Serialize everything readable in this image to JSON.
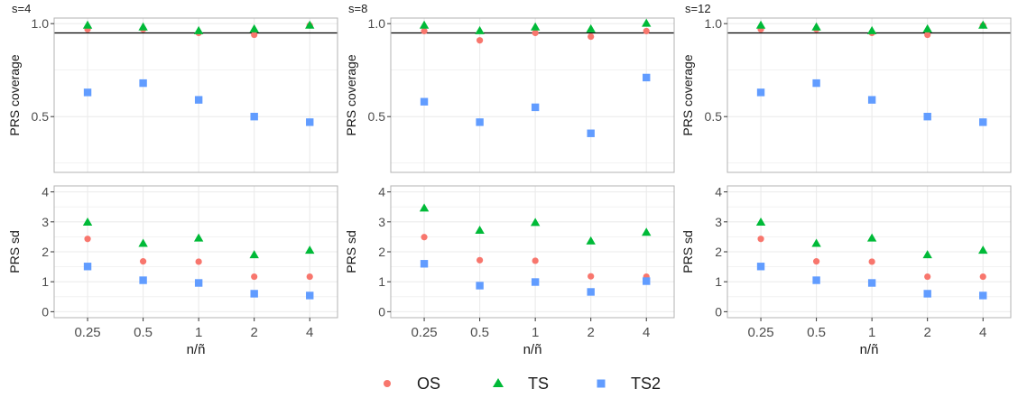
{
  "colors": {
    "OS": "#F8766D",
    "TS": "#00BA38",
    "TS2": "#619CFF",
    "reference_line": "#000000",
    "grid": "#EBEBEB",
    "panel_border": "#B3B3B3"
  },
  "shared_x_categories": [
    "0.25",
    "0.5",
    "1",
    "2",
    "4"
  ],
  "x_axis_label": "n/ñ",
  "legend": {
    "items": [
      {
        "name": "OS",
        "symbol": "circle"
      },
      {
        "name": "TS",
        "symbol": "triangle"
      },
      {
        "name": "TS2",
        "symbol": "square"
      }
    ]
  },
  "chart_data": [
    {
      "type": "scatter",
      "facet": "s=4",
      "ylabel": "PRS coverage",
      "ylim": [
        0.2,
        1.03
      ],
      "yticks": [
        0.5,
        1.0
      ],
      "yticklabels": [
        "0.5",
        "1.0"
      ],
      "reference_line": 0.95,
      "categories": [
        "0.25",
        "0.5",
        "1",
        "2",
        "4"
      ],
      "series": [
        {
          "name": "OS",
          "values": [
            0.97,
            0.97,
            0.95,
            0.94,
            0.99
          ]
        },
        {
          "name": "TS",
          "values": [
            0.99,
            0.98,
            0.96,
            0.97,
            0.99
          ]
        },
        {
          "name": "TS2",
          "values": [
            0.63,
            0.68,
            0.59,
            0.5,
            0.47
          ]
        }
      ]
    },
    {
      "type": "scatter",
      "facet": "s=8",
      "ylabel": "PRS coverage",
      "ylim": [
        0.2,
        1.03
      ],
      "yticks": [
        0.5,
        1.0
      ],
      "yticklabels": [
        "0.5",
        "1.0"
      ],
      "reference_line": 0.95,
      "categories": [
        "0.25",
        "0.5",
        "1",
        "2",
        "4"
      ],
      "series": [
        {
          "name": "OS",
          "values": [
            0.96,
            0.91,
            0.95,
            0.93,
            0.96
          ]
        },
        {
          "name": "TS",
          "values": [
            0.99,
            0.96,
            0.98,
            0.97,
            1.0
          ]
        },
        {
          "name": "TS2",
          "values": [
            0.58,
            0.47,
            0.55,
            0.41,
            0.71
          ]
        }
      ]
    },
    {
      "type": "scatter",
      "facet": "s=12",
      "ylabel": "PRS coverage",
      "ylim": [
        0.2,
        1.03
      ],
      "yticks": [
        0.5,
        1.0
      ],
      "yticklabels": [
        "0.5",
        "1.0"
      ],
      "reference_line": 0.95,
      "categories": [
        "0.25",
        "0.5",
        "1",
        "2",
        "4"
      ],
      "series": [
        {
          "name": "OS",
          "values": [
            0.97,
            0.97,
            0.95,
            0.94,
            0.99
          ]
        },
        {
          "name": "TS",
          "values": [
            0.99,
            0.98,
            0.96,
            0.97,
            0.99
          ]
        },
        {
          "name": "TS2",
          "values": [
            0.63,
            0.68,
            0.59,
            0.5,
            0.47
          ]
        }
      ]
    },
    {
      "type": "scatter",
      "facet": "s=4",
      "ylabel": "PRS sd",
      "xlabel": "n/ñ",
      "ylim": [
        -0.2,
        4.2
      ],
      "yticks": [
        0,
        1,
        2,
        3,
        4
      ],
      "yticklabels": [
        "0",
        "1",
        "2",
        "3",
        "4"
      ],
      "categories": [
        "0.25",
        "0.5",
        "1",
        "2",
        "4"
      ],
      "series": [
        {
          "name": "OS",
          "values": [
            2.43,
            1.68,
            1.67,
            1.17,
            1.17
          ]
        },
        {
          "name": "TS",
          "values": [
            2.98,
            2.27,
            2.45,
            1.89,
            2.04
          ]
        },
        {
          "name": "TS2",
          "values": [
            1.51,
            1.05,
            0.96,
            0.6,
            0.54
          ]
        }
      ]
    },
    {
      "type": "scatter",
      "facet": "s=8",
      "ylabel": "PRS sd",
      "xlabel": "n/ñ",
      "ylim": [
        -0.2,
        4.2
      ],
      "yticks": [
        0,
        1,
        2,
        3,
        4
      ],
      "yticklabels": [
        "0",
        "1",
        "2",
        "3",
        "4"
      ],
      "categories": [
        "0.25",
        "0.5",
        "1",
        "2",
        "4"
      ],
      "series": [
        {
          "name": "OS",
          "values": [
            2.49,
            1.72,
            1.7,
            1.18,
            1.17
          ]
        },
        {
          "name": "TS",
          "values": [
            3.45,
            2.71,
            2.97,
            2.35,
            2.64
          ]
        },
        {
          "name": "TS2",
          "values": [
            1.6,
            0.87,
            0.99,
            0.66,
            1.02
          ]
        }
      ]
    },
    {
      "type": "scatter",
      "facet": "s=12",
      "ylabel": "PRS sd",
      "xlabel": "n/ñ",
      "ylim": [
        -0.2,
        4.2
      ],
      "yticks": [
        0,
        1,
        2,
        3,
        4
      ],
      "yticklabels": [
        "0",
        "1",
        "2",
        "3",
        "4"
      ],
      "categories": [
        "0.25",
        "0.5",
        "1",
        "2",
        "4"
      ],
      "series": [
        {
          "name": "OS",
          "values": [
            2.43,
            1.68,
            1.67,
            1.17,
            1.17
          ]
        },
        {
          "name": "TS",
          "values": [
            2.98,
            2.27,
            2.45,
            1.89,
            2.04
          ]
        },
        {
          "name": "TS2",
          "values": [
            1.51,
            1.05,
            0.96,
            0.6,
            0.54
          ]
        }
      ]
    }
  ]
}
